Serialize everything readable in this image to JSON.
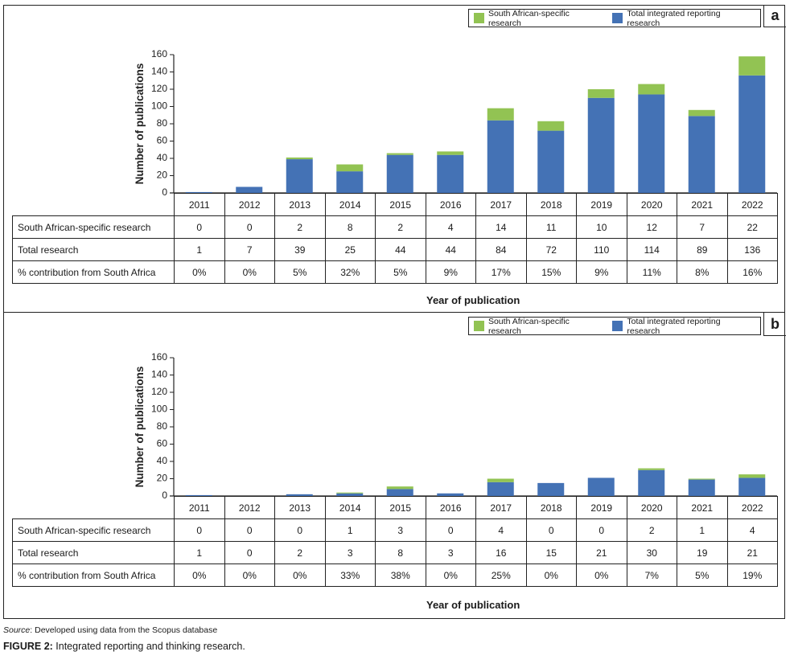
{
  "colors": {
    "south_african": "#92C353",
    "total": "#4472B5",
    "axis": "#222222"
  },
  "legend": {
    "south_african_label": "South African-specific research",
    "total_label": "Total integrated reporting research"
  },
  "source": {
    "prefix": "Source",
    "text": ": Developed using data from the Scopus database"
  },
  "caption": {
    "label": "FIGURE 2:",
    "text": " Integrated reporting and thinking research."
  },
  "panels": [
    {
      "id": "a",
      "label": "a",
      "ylabel": "Number of publications",
      "xlabel": "Year of publication",
      "row_labels": [
        "South African-specific research",
        "Total  research",
        "% contribution from South Africa"
      ],
      "years": [
        "2011",
        "2012",
        "2013",
        "2014",
        "2015",
        "2016",
        "2017",
        "2018",
        "2019",
        "2020",
        "2021",
        "2022"
      ],
      "south_african": [
        "0",
        "0",
        "2",
        "8",
        "2",
        "4",
        "14",
        "11",
        "10",
        "12",
        "7",
        "22"
      ],
      "total": [
        "1",
        "7",
        "39",
        "25",
        "44",
        "44",
        "84",
        "72",
        "110",
        "114",
        "89",
        "136"
      ],
      "percent": [
        "0%",
        "0%",
        "5%",
        "32%",
        "5%",
        "9%",
        "17%",
        "15%",
        "9%",
        "11%",
        "8%",
        "16%"
      ]
    },
    {
      "id": "b",
      "label": "b",
      "ylabel": "Number of publications",
      "xlabel": "Year of publication",
      "row_labels": [
        "South African-specific research",
        "Total research",
        "% contribution from South Africa"
      ],
      "years": [
        "2011",
        "2012",
        "2013",
        "2014",
        "2015",
        "2016",
        "2017",
        "2018",
        "2019",
        "2020",
        "2021",
        "2022"
      ],
      "south_african": [
        "0",
        "0",
        "0",
        "1",
        "3",
        "0",
        "4",
        "0",
        "0",
        "2",
        "1",
        "4"
      ],
      "total": [
        "1",
        "0",
        "2",
        "3",
        "8",
        "3",
        "16",
        "15",
        "21",
        "30",
        "19",
        "21"
      ],
      "percent": [
        "0%",
        "0%",
        "0%",
        "33%",
        "38%",
        "0%",
        "25%",
        "0%",
        "0%",
        "7%",
        "5%",
        "19%"
      ]
    }
  ],
  "chart_data": [
    {
      "type": "bar",
      "stacked": true,
      "panel": "a",
      "title": "",
      "categories": [
        "2011",
        "2012",
        "2013",
        "2014",
        "2015",
        "2016",
        "2017",
        "2018",
        "2019",
        "2020",
        "2021",
        "2022"
      ],
      "series": [
        {
          "name": "Total integrated reporting research",
          "values": [
            1,
            7,
            39,
            25,
            44,
            44,
            84,
            72,
            110,
            114,
            89,
            136
          ]
        },
        {
          "name": "South African-specific research",
          "values": [
            0,
            0,
            2,
            8,
            2,
            4,
            14,
            11,
            10,
            12,
            7,
            22
          ]
        }
      ],
      "xlabel": "Year of publication",
      "ylabel": "Number of publications",
      "ylim": [
        0,
        160
      ],
      "yticks": [
        0,
        20,
        40,
        60,
        80,
        100,
        120,
        140,
        160
      ],
      "grid": false,
      "legend_position": "top-right"
    },
    {
      "type": "bar",
      "stacked": true,
      "panel": "b",
      "title": "",
      "categories": [
        "2011",
        "2012",
        "2013",
        "2014",
        "2015",
        "2016",
        "2017",
        "2018",
        "2019",
        "2020",
        "2021",
        "2022"
      ],
      "series": [
        {
          "name": "Total integrated reporting research",
          "values": [
            1,
            0,
            2,
            3,
            8,
            3,
            16,
            15,
            21,
            30,
            19,
            21
          ]
        },
        {
          "name": "South African-specific research",
          "values": [
            0,
            0,
            0,
            1,
            3,
            0,
            4,
            0,
            0,
            2,
            1,
            4
          ]
        }
      ],
      "xlabel": "Year of publication",
      "ylabel": "Number of publications",
      "ylim": [
        0,
        160
      ],
      "yticks": [
        0,
        20,
        40,
        60,
        80,
        100,
        120,
        140,
        160
      ],
      "grid": false,
      "legend_position": "top-right"
    }
  ]
}
